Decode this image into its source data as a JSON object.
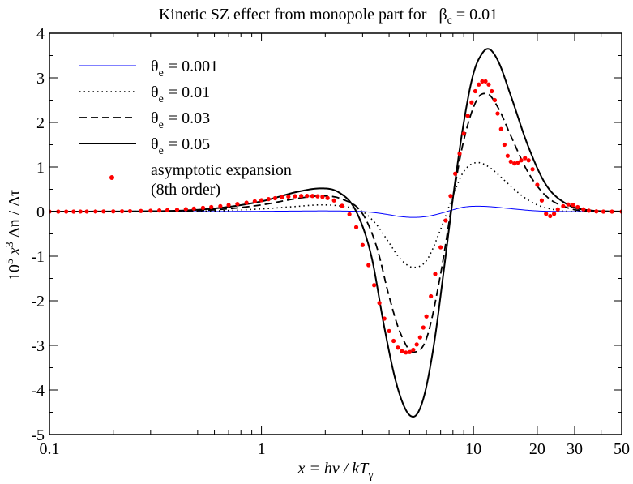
{
  "chart_data": {
    "type": "line",
    "title_prefix": "Kinetic SZ effect from monopole part for",
    "title_beta": "β",
    "title_beta_sub": "c",
    "title_beta_value": "= 0.01",
    "xlabel_x": "x",
    "xlabel_eq": " = hν / kT",
    "xlabel_sub": "γ",
    "ylabel_text": "10",
    "ylabel_sup5": "5",
    "ylabel_x": " x",
    "ylabel_sup3": "3",
    "ylabel_rest": "  Δn / Δτ",
    "x_scale": "log",
    "xlim": [
      0.1,
      50
    ],
    "ylim": [
      -5,
      4
    ],
    "x_ticks": [
      {
        "value": 0.1,
        "label": "0.1"
      },
      {
        "value": 1,
        "label": "1"
      },
      {
        "value": 10,
        "label": "10"
      },
      {
        "value": 20,
        "label": "20"
      },
      {
        "value": 30,
        "label": "30"
      },
      {
        "value": 50,
        "label": "50"
      }
    ],
    "y_ticks": [
      {
        "value": -5,
        "label": "-5"
      },
      {
        "value": -4,
        "label": "-4"
      },
      {
        "value": -3,
        "label": "-3"
      },
      {
        "value": -2,
        "label": "-2"
      },
      {
        "value": -1,
        "label": "-1"
      },
      {
        "value": 0,
        "label": "0"
      },
      {
        "value": 1,
        "label": "1"
      },
      {
        "value": 2,
        "label": "2"
      },
      {
        "value": 3,
        "label": "3"
      },
      {
        "value": 4,
        "label": "4"
      }
    ],
    "legend_placement": "top-left",
    "series": [
      {
        "name_symbol": "θ",
        "name_sub": "e",
        "name_value": "= 0.001",
        "style": "solid-thin",
        "color": "#0000ff",
        "x": [
          0.1,
          0.3,
          0.6,
          1.0,
          1.5,
          1.9,
          2.4,
          3.0,
          3.5,
          4.0,
          4.5,
          5.2,
          6.0,
          7.0,
          8.0,
          9.0,
          10.5,
          12.0,
          14.0,
          17.0,
          20.0,
          25.0,
          30.0,
          50.0
        ],
        "y": [
          0.0,
          0.0,
          0.002,
          0.006,
          0.012,
          0.015,
          0.012,
          0.0,
          -0.03,
          -0.07,
          -0.11,
          -0.13,
          -0.11,
          -0.04,
          0.04,
          0.1,
          0.12,
          0.11,
          0.08,
          0.04,
          0.015,
          0.003,
          0.0,
          0.0
        ]
      },
      {
        "name_symbol": "θ",
        "name_sub": "e",
        "name_value": "= 0.01",
        "style": "dotted",
        "color": "#000000",
        "x": [
          0.1,
          0.3,
          0.6,
          1.0,
          1.5,
          1.9,
          2.4,
          3.0,
          3.5,
          4.0,
          4.5,
          5.2,
          6.0,
          7.0,
          8.0,
          9.0,
          10.5,
          12.0,
          14.0,
          17.0,
          20.0,
          25.0,
          30.0,
          50.0
        ],
        "y": [
          0.0,
          0.002,
          0.015,
          0.06,
          0.12,
          0.15,
          0.12,
          0.0,
          -0.3,
          -0.7,
          -1.05,
          -1.25,
          -1.1,
          -0.4,
          0.35,
          0.9,
          1.1,
          0.98,
          0.7,
          0.35,
          0.15,
          0.03,
          0.005,
          0.0
        ]
      },
      {
        "name_symbol": "θ",
        "name_sub": "e",
        "name_value": "= 0.03",
        "style": "dashed",
        "color": "#000000",
        "x": [
          0.1,
          0.3,
          0.6,
          1.0,
          1.5,
          1.9,
          2.4,
          3.0,
          3.5,
          4.0,
          4.5,
          5.2,
          6.0,
          7.0,
          8.0,
          9.0,
          10.5,
          11.5,
          13.0,
          15.0,
          18.0,
          22.0,
          28.0,
          35.0,
          50.0
        ],
        "y": [
          0.0,
          0.005,
          0.04,
          0.15,
          0.3,
          0.35,
          0.28,
          -0.05,
          -0.8,
          -1.9,
          -2.7,
          -3.15,
          -2.85,
          -1.4,
          0.3,
          1.6,
          2.55,
          2.65,
          2.35,
          1.7,
          0.9,
          0.35,
          0.08,
          0.01,
          0.0
        ]
      },
      {
        "name_symbol": "θ",
        "name_sub": "e",
        "name_value": "= 0.05",
        "style": "solid",
        "color": "#000000",
        "x": [
          0.1,
          0.3,
          0.6,
          1.0,
          1.5,
          1.9,
          2.3,
          2.8,
          3.3,
          3.8,
          4.3,
          4.8,
          5.2,
          5.8,
          6.5,
          7.3,
          8.0,
          9.0,
          10.0,
          11.0,
          11.7,
          13.0,
          15.0,
          18.0,
          22.0,
          28.0,
          35.0,
          50.0
        ],
        "y": [
          0.0,
          0.008,
          0.07,
          0.23,
          0.45,
          0.52,
          0.44,
          0.0,
          -1.0,
          -2.6,
          -3.8,
          -4.45,
          -4.6,
          -4.2,
          -3.0,
          -1.2,
          0.3,
          2.0,
          3.1,
          3.55,
          3.65,
          3.4,
          2.6,
          1.5,
          0.6,
          0.15,
          0.03,
          0.0
        ]
      }
    ],
    "asymptotic": {
      "label_line1": "asymptotic expansion",
      "label_line2": "(8th order)",
      "color": "#ff0000",
      "x": [
        0.1,
        0.11,
        0.12,
        0.13,
        0.14,
        0.15,
        0.165,
        0.18,
        0.2,
        0.22,
        0.24,
        0.27,
        0.3,
        0.33,
        0.36,
        0.4,
        0.44,
        0.48,
        0.53,
        0.58,
        0.64,
        0.7,
        0.77,
        0.85,
        0.93,
        1.0,
        1.08,
        1.16,
        1.25,
        1.34,
        1.44,
        1.54,
        1.64,
        1.74,
        1.84,
        1.94,
        2.05,
        2.2,
        2.4,
        2.6,
        2.8,
        3.0,
        3.2,
        3.4,
        3.6,
        3.8,
        4.0,
        4.2,
        4.4,
        4.6,
        4.8,
        5.0,
        5.2,
        5.4,
        5.6,
        5.8,
        6.0,
        6.3,
        6.6,
        7.0,
        7.4,
        7.8,
        8.2,
        8.6,
        9.0,
        9.4,
        9.8,
        10.2,
        10.6,
        11.0,
        11.4,
        11.8,
        12.2,
        12.6,
        13.0,
        13.5,
        14.0,
        14.5,
        15.0,
        15.6,
        16.2,
        16.8,
        17.5,
        18.2,
        19.0,
        20.0,
        21.0,
        22.0,
        23.0,
        24.0,
        25.0,
        26.5,
        28.0,
        29.5,
        31.0,
        33.0,
        35.0,
        38.0,
        41.0,
        45.0,
        50.0
      ],
      "y": [
        0.0,
        0.0,
        0.0,
        0.0,
        0.001,
        0.001,
        0.002,
        0.003,
        0.005,
        0.007,
        0.01,
        0.014,
        0.019,
        0.025,
        0.032,
        0.042,
        0.054,
        0.067,
        0.084,
        0.1,
        0.12,
        0.145,
        0.17,
        0.2,
        0.23,
        0.255,
        0.28,
        0.3,
        0.32,
        0.335,
        0.345,
        0.35,
        0.352,
        0.35,
        0.343,
        0.33,
        0.305,
        0.25,
        0.13,
        -0.06,
        -0.35,
        -0.75,
        -1.2,
        -1.65,
        -2.05,
        -2.4,
        -2.68,
        -2.9,
        -3.05,
        -3.13,
        -3.16,
        -3.15,
        -3.1,
        -2.98,
        -2.82,
        -2.6,
        -2.35,
        -1.9,
        -1.4,
        -0.8,
        -0.2,
        0.35,
        0.85,
        1.3,
        1.75,
        2.15,
        2.45,
        2.7,
        2.85,
        2.92,
        2.92,
        2.85,
        2.7,
        2.5,
        2.2,
        1.85,
        1.5,
        1.25,
        1.12,
        1.08,
        1.1,
        1.15,
        1.2,
        1.15,
        0.95,
        0.6,
        0.25,
        -0.05,
        -0.1,
        -0.05,
        0.05,
        0.12,
        0.16,
        0.15,
        0.1,
        0.05,
        0.02,
        0.005,
        0.0,
        0.0,
        0.0
      ]
    }
  }
}
